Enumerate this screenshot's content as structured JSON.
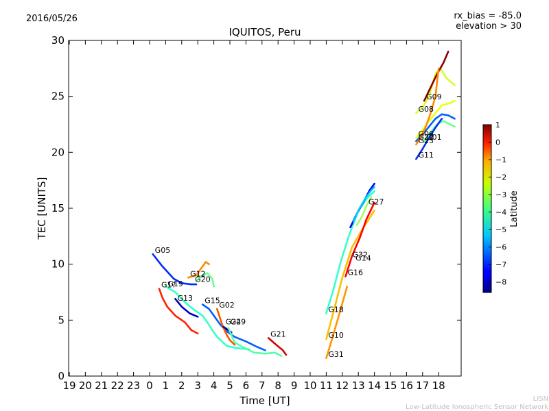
{
  "header": {
    "date": "2016/05/26",
    "rx_bias": "rx_bias = -85.0",
    "elevation": "elevation > 30"
  },
  "footer": {
    "line1": "LISN",
    "line2": "Low-Latitude Ionospheric Sensor Network"
  },
  "colorbar": {
    "label": "Latitude",
    "ticks": [
      "1",
      "0",
      "−1",
      "−2",
      "−3",
      "−4",
      "−5",
      "−6",
      "−7",
      "−8"
    ],
    "range": [
      -8.6,
      1.0
    ]
  },
  "chart_data": {
    "type": "scatter",
    "title": "IQUITOS, Peru",
    "xlabel": "Time [UT]",
    "ylabel": "TEC [UNITS]",
    "x_tick_labels": [
      "19",
      "20",
      "21",
      "22",
      "23",
      "0",
      "1",
      "2",
      "3",
      "4",
      "5",
      "6",
      "7",
      "8",
      "9",
      "10",
      "11",
      "12",
      "13",
      "14",
      "15",
      "16",
      "17",
      "18"
    ],
    "y_ticks": [
      0,
      5,
      10,
      15,
      20,
      25,
      30
    ],
    "ylim": [
      0,
      30
    ],
    "grid": false,
    "legend": "none",
    "series": [
      {
        "name": "G05",
        "label_at": [
          0.2,
          10.9
        ],
        "lat": -7.0,
        "points": [
          [
            0.2,
            10.9
          ],
          [
            0.8,
            9.8
          ],
          [
            1.5,
            8.7
          ],
          [
            2.0,
            8.3
          ],
          [
            2.6,
            8.2
          ],
          [
            2.9,
            8.2
          ]
        ]
      },
      {
        "name": "G19",
        "label_at": [
          1.0,
          7.9
        ],
        "lat": -4.5,
        "points": [
          [
            1.0,
            8.0
          ],
          [
            1.6,
            7.5
          ],
          [
            2.2,
            6.6
          ],
          [
            2.7,
            6.0
          ],
          [
            3.3,
            5.4
          ],
          [
            3.6,
            4.8
          ],
          [
            3.9,
            4.1
          ],
          [
            4.2,
            3.5
          ],
          [
            4.8,
            2.7
          ],
          [
            5.4,
            2.5
          ],
          [
            6.2,
            2.4
          ]
        ]
      },
      {
        "name": "G13",
        "label_at": [
          1.6,
          6.6
        ],
        "lat": -8.0,
        "points": [
          [
            1.6,
            6.9
          ],
          [
            2.0,
            6.2
          ],
          [
            2.5,
            5.6
          ],
          [
            3.0,
            5.3
          ]
        ]
      },
      {
        "name": "G12",
        "label_at": [
          2.4,
          8.8
        ],
        "lat": -1.5,
        "points": [
          [
            2.4,
            8.8
          ],
          [
            2.9,
            9.0
          ],
          [
            3.3,
            9.8
          ],
          [
            3.5,
            10.2
          ],
          [
            3.7,
            10.0
          ]
        ]
      },
      {
        "name": "G20",
        "label_at": [
          2.7,
          8.3
        ],
        "lat": -4.0,
        "points": [
          [
            2.9,
            8.5
          ],
          [
            3.3,
            9.0
          ],
          [
            3.6,
            9.2
          ],
          [
            3.9,
            8.7
          ],
          [
            4.0,
            8.0
          ]
        ]
      },
      {
        "name": "G1?",
        "label_at": [
          0.6,
          7.8
        ],
        "lat": -0.5,
        "points": [
          [
            0.6,
            7.8
          ],
          [
            0.8,
            7.0
          ],
          [
            1.1,
            6.2
          ],
          [
            1.6,
            5.4
          ],
          [
            2.2,
            4.8
          ],
          [
            2.6,
            4.1
          ],
          [
            3.0,
            3.8
          ]
        ]
      },
      {
        "name": "G15",
        "label_at": [
          3.3,
          6.4
        ],
        "lat": -6.5,
        "points": [
          [
            3.3,
            6.4
          ],
          [
            3.7,
            6.0
          ],
          [
            4.0,
            5.4
          ],
          [
            4.4,
            4.6
          ],
          [
            4.8,
            4.0
          ],
          [
            5.3,
            3.5
          ],
          [
            6.0,
            3.1
          ],
          [
            6.7,
            2.6
          ],
          [
            7.2,
            2.3
          ]
        ]
      },
      {
        "name": "G02",
        "label_at": [
          4.2,
          6.0
        ],
        "lat": -1.0,
        "points": [
          [
            4.2,
            6.0
          ],
          [
            4.4,
            5.1
          ],
          [
            4.6,
            4.3
          ],
          [
            4.8,
            3.7
          ],
          [
            5.0,
            3.2
          ],
          [
            5.3,
            2.8
          ]
        ]
      },
      {
        "name": "G24",
        "label_at": [
          4.6,
          4.5
        ],
        "lat": -8.3,
        "points": [
          [
            4.6,
            4.4
          ],
          [
            4.9,
            4.1
          ],
          [
            5.1,
            3.9
          ]
        ]
      },
      {
        "name": "G29",
        "label_at": [
          4.9,
          4.5
        ],
        "lat": -4.2,
        "points": [
          [
            4.9,
            4.3
          ],
          [
            5.3,
            3.0
          ],
          [
            5.8,
            2.6
          ],
          [
            6.5,
            2.1
          ],
          [
            7.2,
            2.0
          ],
          [
            7.8,
            2.1
          ],
          [
            8.2,
            1.8
          ]
        ]
      },
      {
        "name": "G21",
        "label_at": [
          7.4,
          3.4
        ],
        "lat": 0.2,
        "points": [
          [
            7.4,
            3.4
          ],
          [
            7.8,
            2.9
          ],
          [
            8.3,
            2.3
          ],
          [
            8.5,
            1.9
          ]
        ]
      },
      {
        "name": "G18",
        "label_at": [
          11.0,
          5.6
        ],
        "lat": -4.5,
        "points": [
          [
            11.0,
            5.6
          ],
          [
            11.4,
            7.5
          ],
          [
            11.9,
            10.2
          ],
          [
            12.4,
            12.5
          ],
          [
            13.0,
            14.8
          ],
          [
            13.6,
            16.0
          ],
          [
            14.0,
            16.5
          ]
        ]
      },
      {
        "name": "G10",
        "label_at": [
          11.0,
          3.3
        ],
        "lat": -2.0,
        "points": [
          [
            11.0,
            3.3
          ],
          [
            11.5,
            6.0
          ],
          [
            12.0,
            8.8
          ],
          [
            12.6,
            11.5
          ],
          [
            13.2,
            13.0
          ],
          [
            14.0,
            14.8
          ]
        ]
      },
      {
        "name": "G31",
        "label_at": [
          11.0,
          1.6
        ],
        "lat": -1.6,
        "points": [
          [
            11.0,
            1.6
          ],
          [
            11.4,
            3.5
          ],
          [
            11.9,
            6.0
          ],
          [
            12.3,
            8.0
          ]
        ]
      },
      {
        "name": "G16",
        "label_at": [
          12.2,
          8.9
        ],
        "lat": -0.2,
        "points": [
          [
            12.2,
            8.9
          ],
          [
            12.6,
            10.7
          ],
          [
            13.1,
            12.4
          ],
          [
            13.5,
            14.0
          ],
          [
            14.0,
            15.5
          ]
        ]
      },
      {
        "name": "G32",
        "label_at": [
          12.5,
          10.5
        ],
        "lat": -7.5,
        "points": [
          [
            12.5,
            13.3
          ],
          [
            12.9,
            14.5
          ],
          [
            13.3,
            15.5
          ],
          [
            13.7,
            16.6
          ],
          [
            14.0,
            17.2
          ]
        ]
      },
      {
        "name": "G14",
        "label_at": [
          12.7,
          10.2
        ],
        "lat": -5.5,
        "points": [
          [
            12.7,
            13.8
          ],
          [
            13.0,
            14.8
          ],
          [
            13.4,
            15.8
          ],
          [
            13.8,
            16.6
          ],
          [
            14.0,
            16.9
          ]
        ]
      },
      {
        "name": "G27",
        "label_at": [
          13.5,
          15.2
        ],
        "lat": -3.5,
        "points": [
          [
            12.9,
            13.5
          ],
          [
            13.2,
            14.2
          ],
          [
            13.5,
            15.2
          ],
          [
            13.8,
            16.0
          ]
        ]
      },
      {
        "name": "G08",
        "label_at": [
          16.6,
          23.5
        ],
        "lat": -3.0,
        "points": [
          [
            16.6,
            23.5
          ],
          [
            17.0,
            24.0
          ],
          [
            17.4,
            25.0
          ],
          [
            17.8,
            27.0
          ],
          [
            18.1,
            27.5
          ],
          [
            18.5,
            26.6
          ],
          [
            19.0,
            26.0
          ]
        ]
      },
      {
        "name": "G09",
        "label_at": [
          17.1,
          24.6
        ],
        "lat": 0.9,
        "points": [
          [
            17.1,
            24.6
          ],
          [
            17.5,
            25.8
          ],
          [
            17.9,
            27.0
          ],
          [
            18.3,
            28.0
          ],
          [
            18.6,
            29.0
          ]
        ]
      },
      {
        "name": "G06",
        "label_at": [
          16.6,
          21.3
        ],
        "lat": -2.8,
        "points": [
          [
            16.6,
            21.3
          ],
          [
            17.0,
            22.0
          ],
          [
            17.4,
            22.8
          ],
          [
            17.8,
            23.5
          ],
          [
            18.2,
            24.2
          ],
          [
            18.7,
            24.4
          ],
          [
            19.0,
            24.6
          ]
        ]
      },
      {
        "name": "G22",
        "label_at": [
          16.6,
          21.0
        ],
        "lat": -6.5,
        "points": [
          [
            16.6,
            21.0
          ],
          [
            17.0,
            21.6
          ],
          [
            17.4,
            22.3
          ],
          [
            17.8,
            23.0
          ],
          [
            18.2,
            23.4
          ],
          [
            18.6,
            23.3
          ],
          [
            19.0,
            23.0
          ]
        ]
      },
      {
        "name": "G01",
        "label_at": [
          17.1,
          21.0
        ],
        "lat": -4.0,
        "points": [
          [
            17.1,
            21.0
          ],
          [
            17.5,
            21.8
          ],
          [
            17.9,
            22.5
          ],
          [
            18.3,
            22.8
          ],
          [
            18.7,
            22.5
          ],
          [
            19.0,
            22.3
          ]
        ]
      },
      {
        "name": "G23",
        "label_at": [
          16.6,
          20.7
        ],
        "lat": -1.5,
        "points": [
          [
            16.6,
            20.7
          ],
          [
            16.9,
            21.4
          ],
          [
            17.2,
            22.3
          ],
          [
            17.5,
            23.5
          ],
          [
            17.8,
            25.0
          ],
          [
            18.0,
            27.5
          ]
        ]
      },
      {
        "name": "G11",
        "label_at": [
          16.6,
          19.4
        ],
        "lat": -7.0,
        "points": [
          [
            16.6,
            19.4
          ],
          [
            17.0,
            20.3
          ],
          [
            17.4,
            21.3
          ],
          [
            17.8,
            22.2
          ],
          [
            18.2,
            23.0
          ]
        ]
      }
    ]
  }
}
